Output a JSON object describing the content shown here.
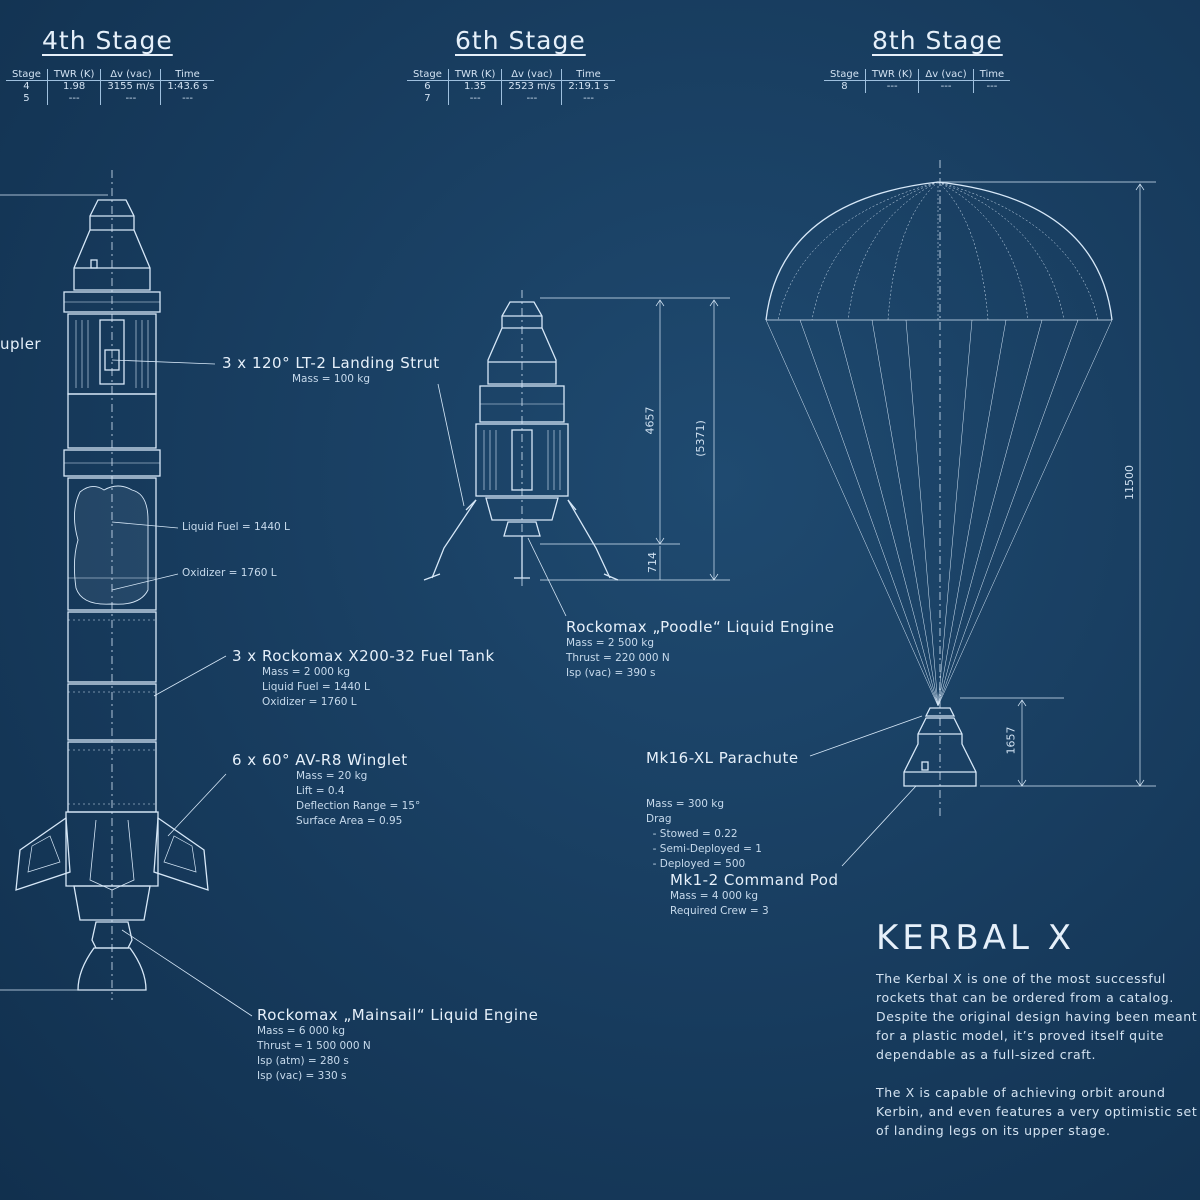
{
  "stages": [
    {
      "title": "4th Stage",
      "headers": [
        "Stage",
        "TWR (K)",
        "Δv (vac)",
        "Time"
      ],
      "rows": [
        [
          "4",
          "1.98",
          "3155 m/s",
          "1:43.6 s"
        ],
        [
          "5",
          "---",
          "---",
          "---"
        ]
      ]
    },
    {
      "title": "6th Stage",
      "headers": [
        "Stage",
        "TWR (K)",
        "Δv (vac)",
        "Time"
      ],
      "rows": [
        [
          "6",
          "1.35",
          "2523 m/s",
          "2:19.1 s"
        ],
        [
          "7",
          "---",
          "---",
          "---"
        ]
      ]
    },
    {
      "title": "8th Stage",
      "headers": [
        "Stage",
        "TWR (K)",
        "Δv (vac)",
        "Time"
      ],
      "rows": [
        [
          "8",
          "---",
          "---",
          "---"
        ]
      ]
    }
  ],
  "parts": {
    "coupler": {
      "title": "upler"
    },
    "landing_strut": {
      "title": "3 x 120° LT-2 Landing Strut",
      "specs": [
        "Mass = 100 kg"
      ]
    },
    "liquid_fuel": {
      "title": "Liquid Fuel = 1440 L"
    },
    "oxidizer": {
      "title": "Oxidizer = 1760 L"
    },
    "fuel_tank": {
      "title": "3 x Rockomax X200-32 Fuel Tank",
      "specs": [
        "Mass = 2 000 kg",
        "Liquid Fuel = 1440 L",
        "Oxidizer = 1760 L"
      ]
    },
    "winglet": {
      "title": "6 x 60° AV-R8 Winglet",
      "specs": [
        "Mass = 20 kg",
        "Lift = 0.4",
        "Deflection Range = 15°",
        "Surface Area = 0.95"
      ]
    },
    "mainsail": {
      "title": "Rockomax „Mainsail“ Liquid Engine",
      "specs": [
        "Mass = 6 000 kg",
        "Thrust = 1 500 000 N",
        "Isp (atm) = 280 s",
        "Isp (vac) = 330 s"
      ]
    },
    "poodle": {
      "title": "Rockomax „Poodle“ Liquid Engine",
      "specs": [
        "Mass = 2 500 kg",
        "Thrust = 220 000 N",
        "Isp (vac) = 390 s"
      ]
    },
    "parachute": {
      "title": "Mk16-XL Parachute",
      "specs": [
        "Mass = 300 kg",
        "Drag",
        "  - Stowed = 0.22",
        "  - Semi-Deployed = 1",
        "  - Deployed = 500"
      ]
    },
    "command_pod": {
      "title": "Mk1-2 Command Pod",
      "specs": [
        "Mass = 4 000 kg",
        "Required Crew = 3"
      ]
    }
  },
  "dimensions": {
    "d4657": "4657",
    "d5371": "(5371)",
    "d714": "714",
    "d11500": "11500",
    "d1657": "1657"
  },
  "info": {
    "title": "KERBAL X",
    "para1": "The Kerbal X is one of the most successful rockets that can be ordered from a catalog. Despite the original design having been meant for a plastic model, it’s proved itself quite dependable as a full-sized craft.",
    "para2": "The X is capable of achieving orbit around Kerbin, and even features a very optimistic set of landing legs on its upper stage."
  },
  "colors": {
    "background": "#173b5d",
    "line": "#d7e8f8"
  }
}
